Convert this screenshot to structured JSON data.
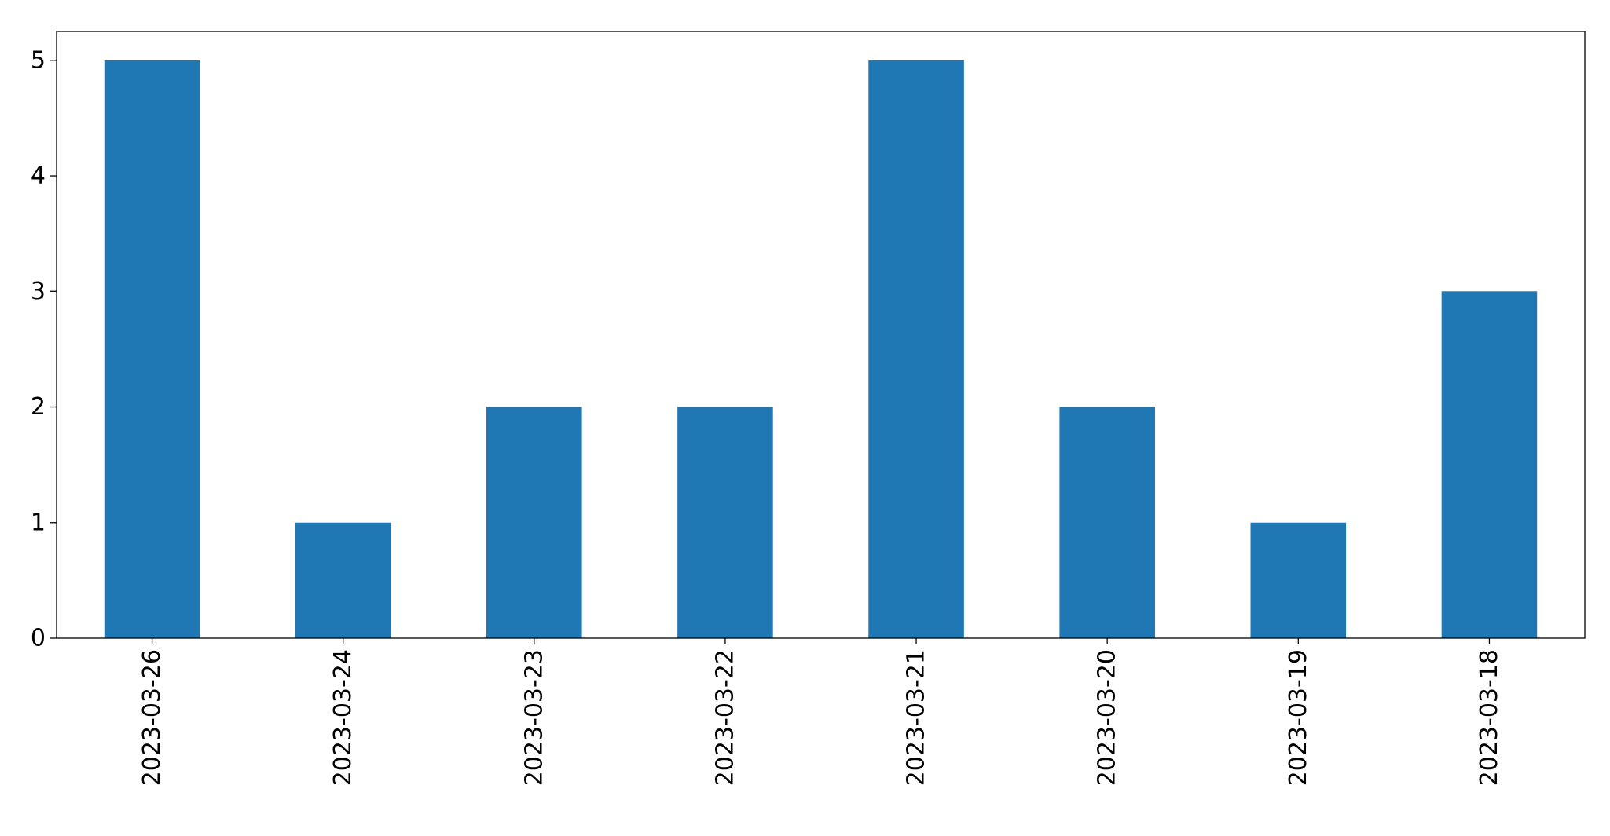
{
  "chart_data": {
    "type": "bar",
    "title": "",
    "xlabel": "",
    "ylabel": "",
    "categories": [
      "2023-03-26",
      "2023-03-24",
      "2023-03-23",
      "2023-03-22",
      "2023-03-21",
      "2023-03-20",
      "2023-03-19",
      "2023-03-18"
    ],
    "values": [
      5,
      1,
      2,
      2,
      5,
      2,
      1,
      3
    ],
    "ylim": [
      0,
      5.25
    ],
    "yticks": [
      0,
      1,
      2,
      3,
      4,
      5
    ],
    "grid": false,
    "legend": "none",
    "bar_color": "#1f77b4",
    "tick_label_rotation": "vertical"
  }
}
